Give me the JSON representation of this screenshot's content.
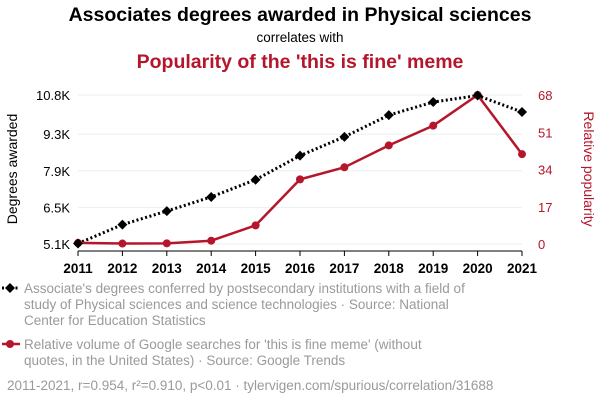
{
  "title": "Associates degrees awarded in Physical sciences",
  "correlates_with": "correlates with",
  "subtitle": "Popularity of the 'this is fine' meme",
  "colors": {
    "series1": "#000000",
    "series2": "#b5162b",
    "title": "#000000",
    "subtitle": "#b5162b",
    "muted": "#9a9a9a",
    "grid": "#eeeeee"
  },
  "chart_data": {
    "type": "line",
    "x": [
      2011,
      2012,
      2013,
      2014,
      2015,
      2016,
      2017,
      2018,
      2019,
      2020,
      2021
    ],
    "x_tick_labels": [
      "2011",
      "2012",
      "2013",
      "2014",
      "2015",
      "2016",
      "2017",
      "2018",
      "2019",
      "2020",
      "2021"
    ],
    "y_left": {
      "label": "Degrees awarded",
      "ticks": [
        5100,
        6500,
        7900,
        9300,
        10800
      ],
      "tick_labels": [
        "5.1K",
        "6.5K",
        "7.9K",
        "9.3K",
        "10.8K"
      ],
      "range": [
        5100,
        10800
      ]
    },
    "y_right": {
      "label": "Relative popularity",
      "ticks": [
        0,
        17,
        34,
        51,
        68
      ],
      "tick_labels": [
        "0",
        "17",
        "34",
        "51",
        "68"
      ],
      "range": [
        0,
        68
      ]
    },
    "grid": true,
    "series": [
      {
        "axis": "left",
        "style": "dotted",
        "marker": "diamond",
        "values": [
          5120,
          5840,
          6360,
          6900,
          7560,
          8480,
          9200,
          10030,
          10530,
          10780,
          10150
        ]
      },
      {
        "axis": "right",
        "style": "solid",
        "marker": "circle",
        "values": [
          0.5,
          0.2,
          0.3,
          1.5,
          8.5,
          29.5,
          35,
          45,
          54,
          68,
          41
        ]
      }
    ]
  },
  "legend": [
    {
      "lines": [
        "Associate's degrees conferred by postsecondary institutions with a field of",
        "study of Physical sciences and science technologies · Source: National",
        "Center for Education Statistics"
      ]
    },
    {
      "lines": [
        "Relative volume of Google searches for 'this is fine meme' (without",
        "quotes, in the United States) · Source: Google Trends"
      ]
    }
  ],
  "footer": "2011-2021, r=0.954, r²=0.910, p<0.01 · tylervigen.com/spurious/correlation/31688"
}
